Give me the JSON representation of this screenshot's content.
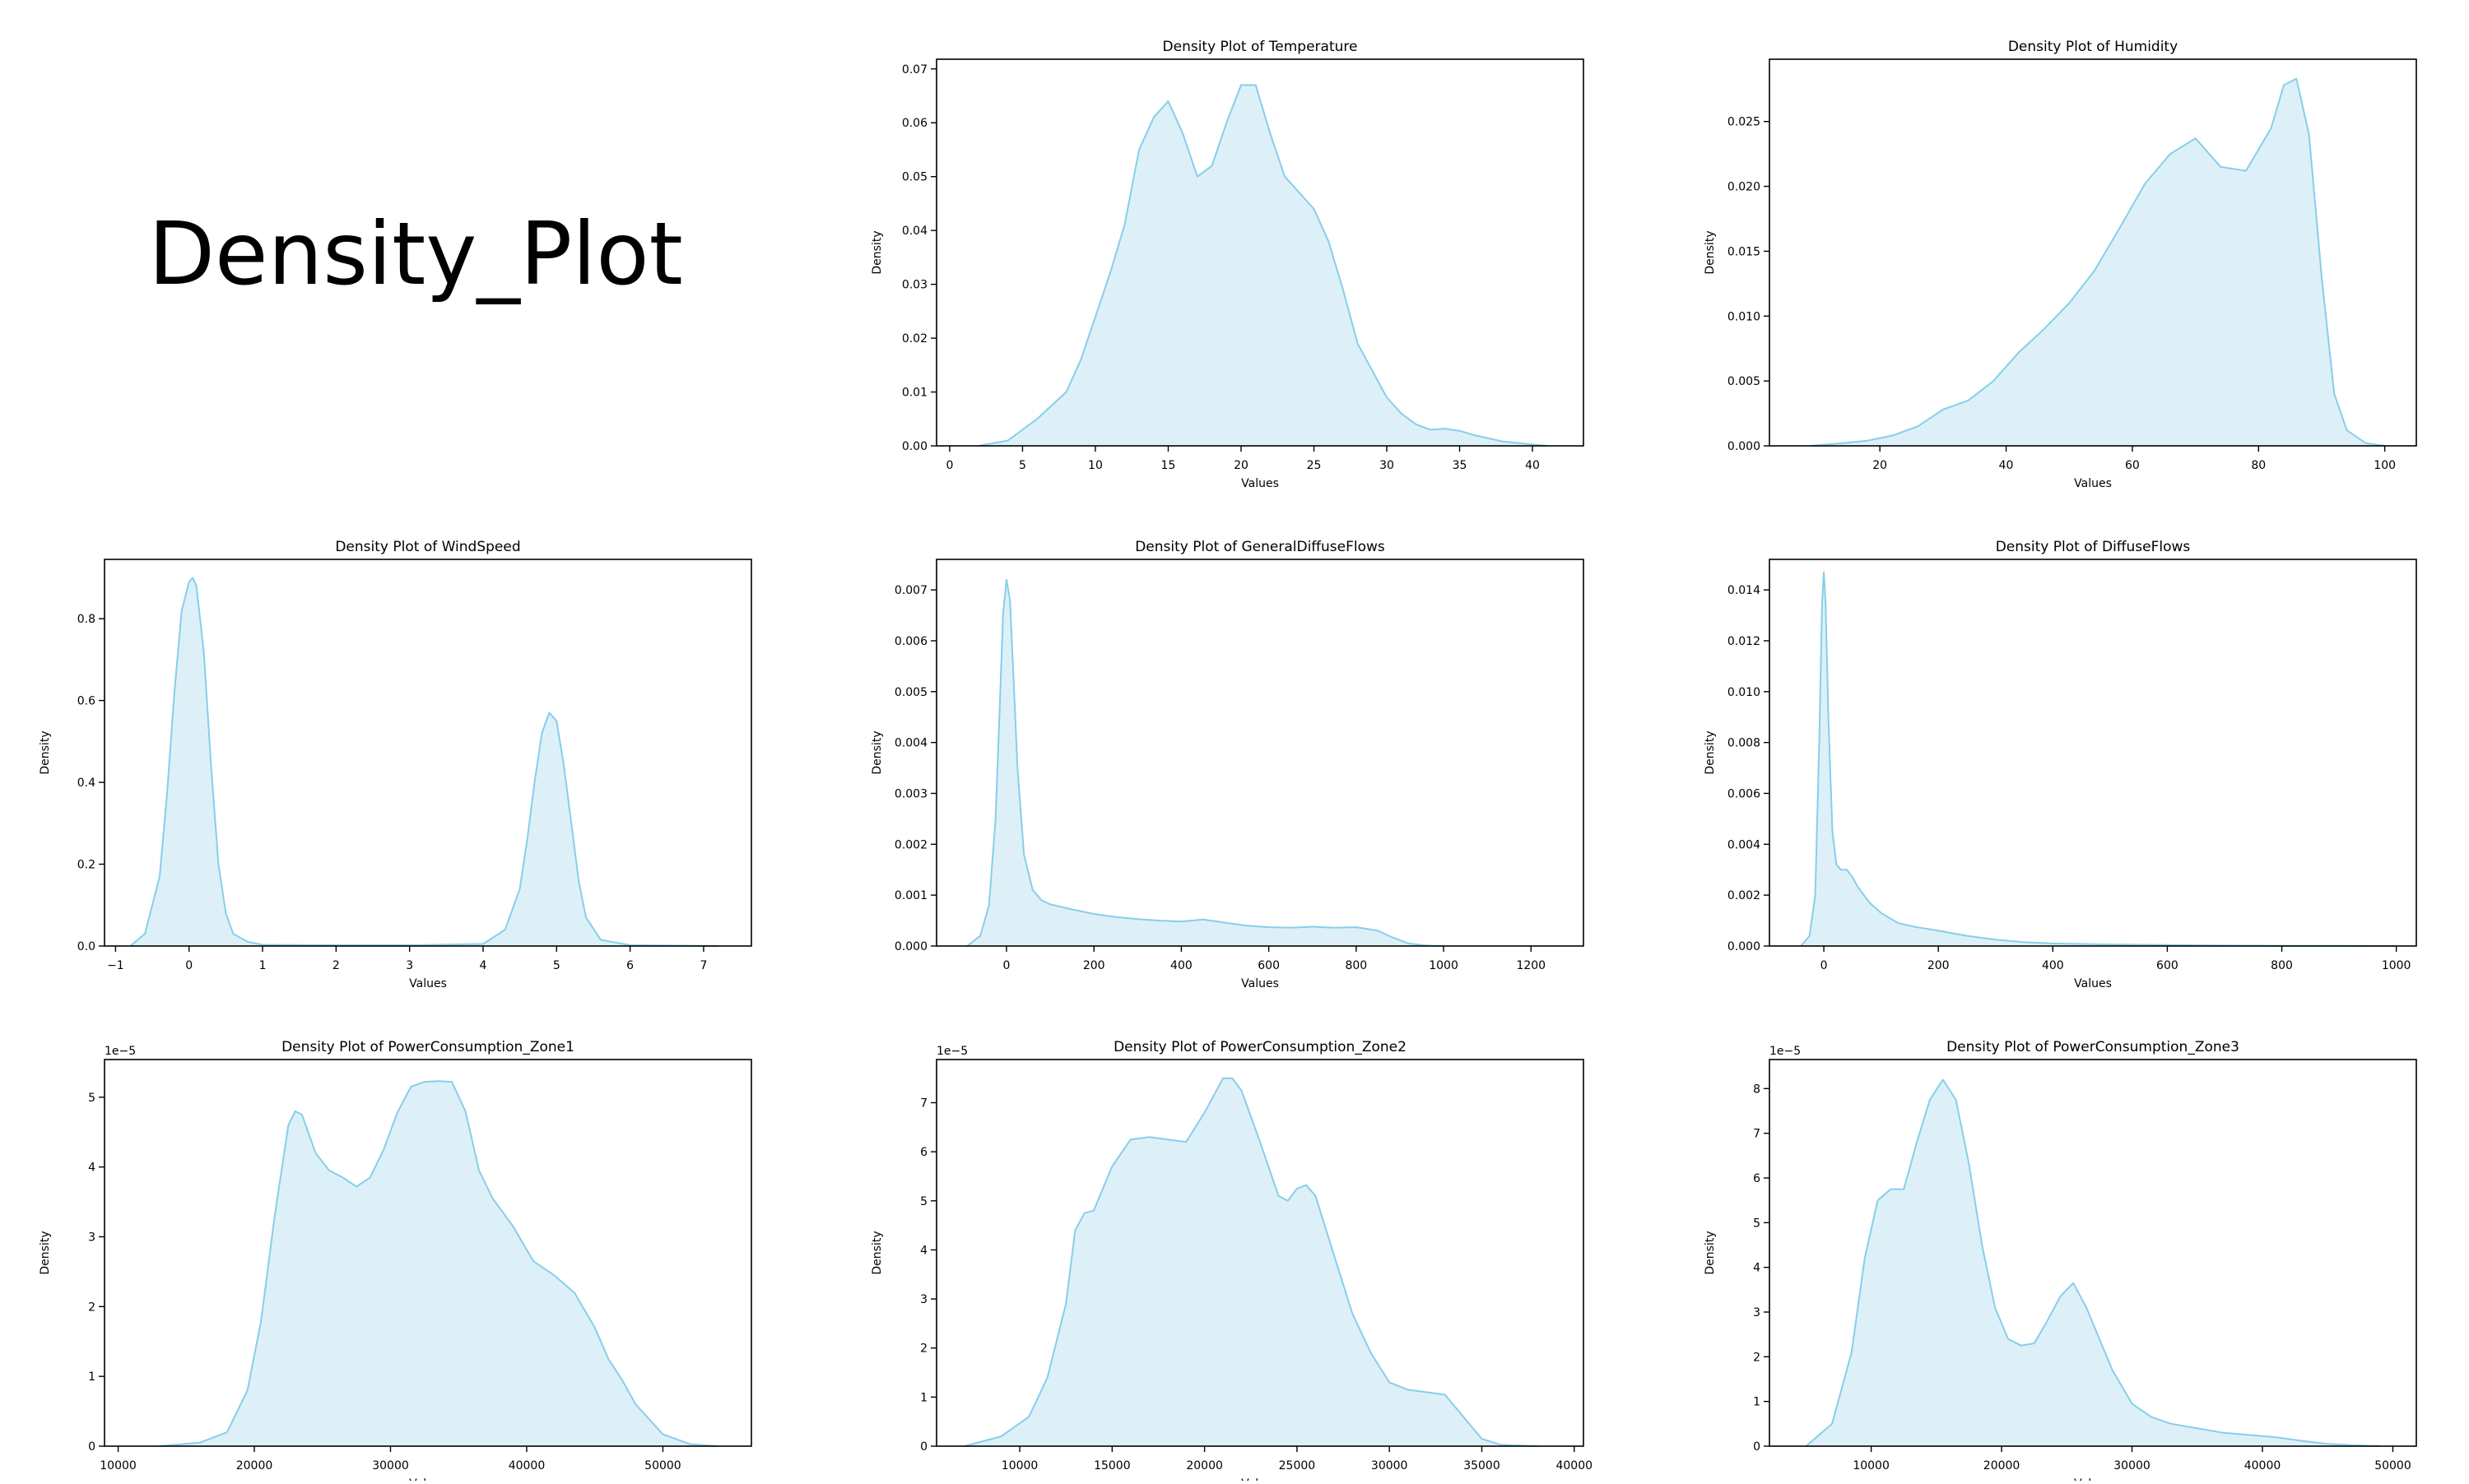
{
  "figure_title": "Density_Plot",
  "colors": {
    "fill": "#ddf0f8",
    "line": "#87ceeb",
    "axis": "#000000"
  },
  "chart_data": [
    {
      "type": "area",
      "title": "Density Plot of Temperature",
      "xlabel": "Values",
      "ylabel": "Density",
      "xlim": [
        -0.9,
        43.5
      ],
      "ylim": [
        0,
        0.0718
      ],
      "xticks": [
        0,
        5,
        10,
        15,
        20,
        25,
        30,
        35,
        40
      ],
      "yticks": [
        0.0,
        0.01,
        0.02,
        0.03,
        0.04,
        0.05,
        0.06,
        0.07
      ],
      "ytick_labels": [
        "0.00",
        "0.01",
        "0.02",
        "0.03",
        "0.04",
        "0.05",
        "0.06",
        "0.07"
      ],
      "offset_label": "",
      "x": [
        2,
        4,
        6,
        8,
        9,
        10,
        11,
        12,
        13,
        14,
        15,
        16,
        17,
        18,
        19,
        20,
        21,
        22,
        23,
        24,
        25,
        26,
        27,
        28,
        29,
        30,
        31,
        32,
        33,
        34,
        35,
        36,
        38,
        41
      ],
      "y": [
        0.0,
        0.001,
        0.005,
        0.01,
        0.016,
        0.024,
        0.032,
        0.041,
        0.055,
        0.061,
        0.064,
        0.058,
        0.05,
        0.052,
        0.06,
        0.067,
        0.067,
        0.058,
        0.05,
        0.047,
        0.044,
        0.038,
        0.029,
        0.019,
        0.014,
        0.009,
        0.006,
        0.004,
        0.003,
        0.0032,
        0.0028,
        0.002,
        0.0008,
        0.0
      ]
    },
    {
      "type": "area",
      "title": "Density Plot of Humidity",
      "xlabel": "Values",
      "ylabel": "Density",
      "xlim": [
        2.5,
        105
      ],
      "ylim": [
        0,
        0.0298
      ],
      "xticks": [
        20,
        40,
        60,
        80,
        100
      ],
      "yticks": [
        0.0,
        0.005,
        0.01,
        0.015,
        0.02,
        0.025
      ],
      "ytick_labels": [
        "0.000",
        "0.005",
        "0.010",
        "0.015",
        "0.020",
        "0.025"
      ],
      "offset_label": "",
      "x": [
        9,
        14,
        18,
        22,
        26,
        30,
        34,
        38,
        42,
        46,
        50,
        54,
        58,
        62,
        66,
        70,
        74,
        78,
        82,
        84,
        86,
        88,
        90,
        92,
        94,
        97,
        100
      ],
      "y": [
        0.0,
        0.0002,
        0.0004,
        0.0008,
        0.0015,
        0.0028,
        0.0035,
        0.005,
        0.0072,
        0.009,
        0.011,
        0.0135,
        0.0168,
        0.0202,
        0.0225,
        0.0237,
        0.0215,
        0.0212,
        0.0245,
        0.0278,
        0.0283,
        0.024,
        0.013,
        0.004,
        0.0012,
        0.0002,
        0.0
      ]
    },
    {
      "type": "area",
      "title": "Density Plot of WindSpeed",
      "xlabel": "Values",
      "ylabel": "Density",
      "xlim": [
        -1.15,
        7.65
      ],
      "ylim": [
        0,
        0.945
      ],
      "xticks": [
        -1,
        0,
        1,
        2,
        3,
        4,
        5,
        6,
        7
      ],
      "yticks": [
        0.0,
        0.2,
        0.4,
        0.6,
        0.8
      ],
      "ytick_labels": [
        "0.0",
        "0.2",
        "0.4",
        "0.6",
        "0.8"
      ],
      "offset_label": "",
      "x": [
        -0.8,
        -0.6,
        -0.4,
        -0.3,
        -0.2,
        -0.1,
        0.0,
        0.05,
        0.1,
        0.2,
        0.3,
        0.4,
        0.5,
        0.6,
        0.8,
        1.0,
        2.0,
        3.0,
        4.0,
        4.3,
        4.5,
        4.6,
        4.7,
        4.8,
        4.9,
        5.0,
        5.1,
        5.2,
        5.3,
        5.4,
        5.6,
        6.0,
        7.2
      ],
      "y": [
        0.0,
        0.03,
        0.17,
        0.37,
        0.62,
        0.82,
        0.89,
        0.9,
        0.88,
        0.72,
        0.44,
        0.2,
        0.08,
        0.03,
        0.01,
        0.003,
        0.002,
        0.002,
        0.005,
        0.04,
        0.14,
        0.26,
        0.4,
        0.52,
        0.57,
        0.55,
        0.44,
        0.3,
        0.16,
        0.07,
        0.015,
        0.002,
        0.0
      ]
    },
    {
      "type": "area",
      "title": "Density Plot of GeneralDiffuseFlows",
      "xlabel": "Values",
      "ylabel": "Density",
      "xlim": [
        -160,
        1320
      ],
      "ylim": [
        0,
        0.0076
      ],
      "xticks": [
        0,
        200,
        400,
        600,
        800,
        1000,
        1200
      ],
      "yticks": [
        0.0,
        0.001,
        0.002,
        0.003,
        0.004,
        0.005,
        0.006,
        0.007
      ],
      "ytick_labels": [
        "0.000",
        "0.001",
        "0.002",
        "0.003",
        "0.004",
        "0.005",
        "0.006",
        "0.007"
      ],
      "offset_label": "",
      "x": [
        -90,
        -60,
        -40,
        -25,
        -15,
        -8,
        0,
        8,
        15,
        25,
        40,
        60,
        80,
        100,
        150,
        200,
        250,
        300,
        350,
        400,
        450,
        500,
        550,
        600,
        650,
        700,
        750,
        800,
        850,
        880,
        920,
        960,
        1000
      ],
      "y": [
        0.0,
        0.0002,
        0.0008,
        0.0025,
        0.0048,
        0.0065,
        0.0072,
        0.0068,
        0.0055,
        0.0035,
        0.0018,
        0.0011,
        0.0009,
        0.00082,
        0.00072,
        0.00063,
        0.00057,
        0.00053,
        0.0005,
        0.00048,
        0.00052,
        0.00046,
        0.0004,
        0.00037,
        0.00036,
        0.00038,
        0.00036,
        0.00037,
        0.0003,
        0.00018,
        5e-05,
        1e-05,
        0.0
      ]
    },
    {
      "type": "area",
      "title": "Density Plot of DiffuseFlows",
      "xlabel": "Values",
      "ylabel": "Density",
      "xlim": [
        -95,
        1035
      ],
      "ylim": [
        0,
        0.0152
      ],
      "xticks": [
        0,
        200,
        400,
        600,
        800,
        1000
      ],
      "yticks": [
        0.0,
        0.002,
        0.004,
        0.006,
        0.008,
        0.01,
        0.012,
        0.014
      ],
      "ytick_labels": [
        "0.000",
        "0.002",
        "0.004",
        "0.006",
        "0.008",
        "0.010",
        "0.012",
        "0.014"
      ],
      "offset_label": "",
      "x": [
        -40,
        -25,
        -15,
        -8,
        -3,
        0,
        3,
        8,
        15,
        22,
        30,
        40,
        50,
        60,
        80,
        100,
        130,
        160,
        200,
        250,
        300,
        350,
        400,
        500,
        600,
        700,
        800,
        900,
        1000
      ],
      "y": [
        0.0,
        0.0004,
        0.002,
        0.008,
        0.0135,
        0.0147,
        0.0135,
        0.009,
        0.0045,
        0.0032,
        0.003,
        0.003,
        0.0027,
        0.0023,
        0.0017,
        0.0013,
        0.0009,
        0.00075,
        0.0006,
        0.0004,
        0.00025,
        0.00015,
        0.0001,
        6e-05,
        4e-05,
        2e-05,
        1e-05,
        5e-06,
        0.0
      ]
    },
    {
      "type": "area",
      "title": "Density Plot of PowerConsumption_Zone1",
      "xlabel": "Values",
      "ylabel": "Density",
      "xlim": [
        9000,
        56500
      ],
      "ylim": [
        0,
        5.54e-05
      ],
      "xticks": [
        10000,
        20000,
        30000,
        40000,
        50000
      ],
      "yticks": [
        0,
        1e-05,
        2e-05,
        3e-05,
        4e-05,
        5e-05
      ],
      "ytick_labels": [
        "0",
        "1",
        "2",
        "3",
        "4",
        "5"
      ],
      "offset_label": "1e−5",
      "x": [
        13000,
        16000,
        18000,
        19500,
        20500,
        21500,
        22500,
        23000,
        23500,
        24500,
        25500,
        26500,
        27500,
        28500,
        29500,
        30500,
        31500,
        32500,
        33500,
        34500,
        35500,
        36500,
        37500,
        39000,
        40500,
        42000,
        43500,
        45000,
        46000,
        47000,
        48000,
        50000,
        52000,
        54000
      ],
      "y": [
        0.0,
        5e-07,
        2e-06,
        8e-06,
        1.8e-05,
        3.3e-05,
        4.6e-05,
        4.8e-05,
        4.75e-05,
        4.2e-05,
        3.95e-05,
        3.85e-05,
        3.72e-05,
        3.85e-05,
        4.25e-05,
        4.78e-05,
        5.15e-05,
        5.22e-05,
        5.23e-05,
        5.22e-05,
        4.8e-05,
        3.95e-05,
        3.55e-05,
        3.15e-05,
        2.65e-05,
        2.45e-05,
        2.2e-05,
        1.7e-05,
        1.25e-05,
        9.5e-06,
        6e-06,
        1.7e-06,
        3e-07,
        0.0
      ]
    },
    {
      "type": "area",
      "title": "Density Plot of PowerConsumption_Zone2",
      "xlabel": "Values",
      "ylabel": "Density",
      "xlim": [
        5500,
        40500
      ],
      "ylim": [
        0,
        7.88e-05
      ],
      "xticks": [
        10000,
        15000,
        20000,
        25000,
        30000,
        35000,
        40000
      ],
      "yticks": [
        0,
        1e-05,
        2e-05,
        3e-05,
        4e-05,
        5e-05,
        6e-05,
        7e-05
      ],
      "ytick_labels": [
        "0",
        "1",
        "2",
        "3",
        "4",
        "5",
        "6",
        "7"
      ],
      "offset_label": "1e−5",
      "x": [
        7000,
        9000,
        10500,
        11500,
        12500,
        13000,
        13500,
        14000,
        15000,
        16000,
        17000,
        18000,
        19000,
        20000,
        21000,
        21500,
        22000,
        23000,
        24000,
        24500,
        25000,
        25500,
        26000,
        27000,
        28000,
        29000,
        30000,
        31000,
        32000,
        33000,
        34000,
        35000,
        36000,
        38000
      ],
      "y": [
        0.0,
        2e-06,
        6e-06,
        1.4e-05,
        2.9e-05,
        4.4e-05,
        4.75e-05,
        4.8e-05,
        5.7e-05,
        6.25e-05,
        6.3e-05,
        6.25e-05,
        6.2e-05,
        6.8e-05,
        7.5e-05,
        7.5e-05,
        7.25e-05,
        6.2e-05,
        5.1e-05,
        5e-05,
        5.25e-05,
        5.32e-05,
        5.1e-05,
        3.9e-05,
        2.7e-05,
        1.9e-05,
        1.3e-05,
        1.15e-05,
        1.1e-05,
        1.05e-05,
        6e-06,
        1.5e-06,
        3e-07,
        0.0
      ]
    },
    {
      "type": "area",
      "title": "Density Plot of PowerConsumption_Zone3",
      "xlabel": "Values",
      "ylabel": "Density",
      "xlim": [
        2200,
        51800
      ],
      "ylim": [
        0,
        8.65e-05
      ],
      "xticks": [
        10000,
        20000,
        30000,
        40000,
        50000
      ],
      "yticks": [
        0,
        1e-05,
        2e-05,
        3e-05,
        4e-05,
        5e-05,
        6e-05,
        7e-05,
        8e-05
      ],
      "ytick_labels": [
        "0",
        "1",
        "2",
        "3",
        "4",
        "5",
        "6",
        "7",
        "8"
      ],
      "offset_label": "1e−5",
      "x": [
        5000,
        7000,
        8500,
        9500,
        10500,
        11500,
        12500,
        13500,
        14500,
        15500,
        16500,
        17500,
        18500,
        19500,
        20500,
        21500,
        22500,
        23500,
        24500,
        25500,
        26500,
        27500,
        28500,
        30000,
        31500,
        33000,
        35000,
        37000,
        39000,
        41000,
        43000,
        45000,
        47000,
        49000
      ],
      "y": [
        0.0,
        5e-06,
        2.1e-05,
        4.2e-05,
        5.5e-05,
        5.75e-05,
        5.75e-05,
        6.8e-05,
        7.75e-05,
        8.2e-05,
        7.75e-05,
        6.3e-05,
        4.5e-05,
        3.1e-05,
        2.4e-05,
        2.25e-05,
        2.3e-05,
        2.8e-05,
        3.35e-05,
        3.65e-05,
        3.1e-05,
        2.4e-05,
        1.7e-05,
        9.5e-06,
        6.5e-06,
        5e-06,
        4e-06,
        3e-06,
        2.5e-06,
        2e-06,
        1.2e-06,
        5e-07,
        2e-07,
        0.0
      ]
    }
  ]
}
